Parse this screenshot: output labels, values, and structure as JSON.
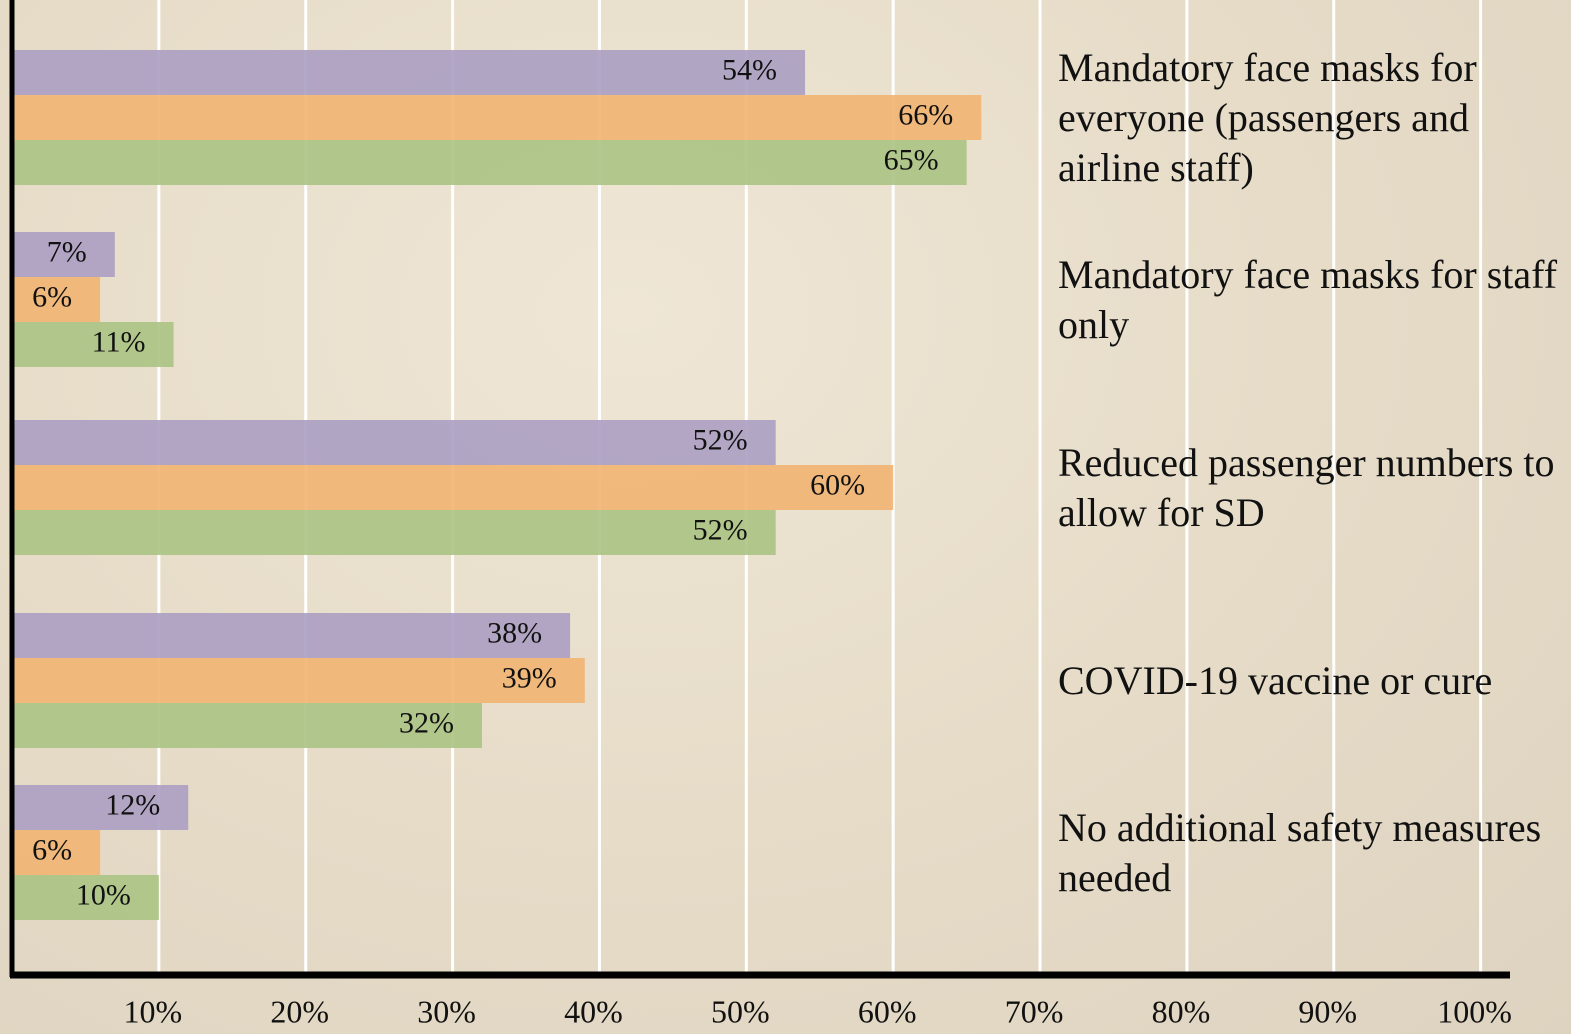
{
  "chart_data": {
    "type": "hbar",
    "categories": [
      "Mandatory face masks for everyone (passengers and airline staff)",
      "Mandatory face masks for staff only",
      "Reduced passenger numbers to allow for SD",
      "COVID-19 vaccine or cure",
      "No additional safety measures needed"
    ],
    "series": [
      {
        "color": "#ab9fc2",
        "values": [
          54,
          7,
          52,
          38,
          12
        ],
        "value_labels": [
          "54%",
          "7%",
          "52%",
          "38%",
          "12%"
        ]
      },
      {
        "color": "#f2b472",
        "values": [
          66,
          6,
          60,
          39,
          6
        ],
        "value_labels": [
          "66%",
          "6%",
          "60%",
          "39%",
          "6%"
        ]
      },
      {
        "color": "#abc383",
        "values": [
          65,
          11,
          52,
          32,
          10
        ],
        "value_labels": [
          "65%",
          "11%",
          "52%",
          "32%",
          "10%"
        ]
      }
    ],
    "xlim": [
      0,
      102
    ],
    "xticks": [
      {
        "value": 10,
        "label": "10%"
      },
      {
        "value": 20,
        "label": "20%"
      },
      {
        "value": 30,
        "label": "30%"
      },
      {
        "value": 40,
        "label": "40%"
      },
      {
        "value": 50,
        "label": "50%"
      },
      {
        "value": 60,
        "label": "60%"
      },
      {
        "value": 70,
        "label": "70%"
      },
      {
        "value": 80,
        "label": "80%"
      },
      {
        "value": 90,
        "label": "90%"
      },
      {
        "value": 100,
        "label": "100%"
      }
    ],
    "grid": true
  }
}
